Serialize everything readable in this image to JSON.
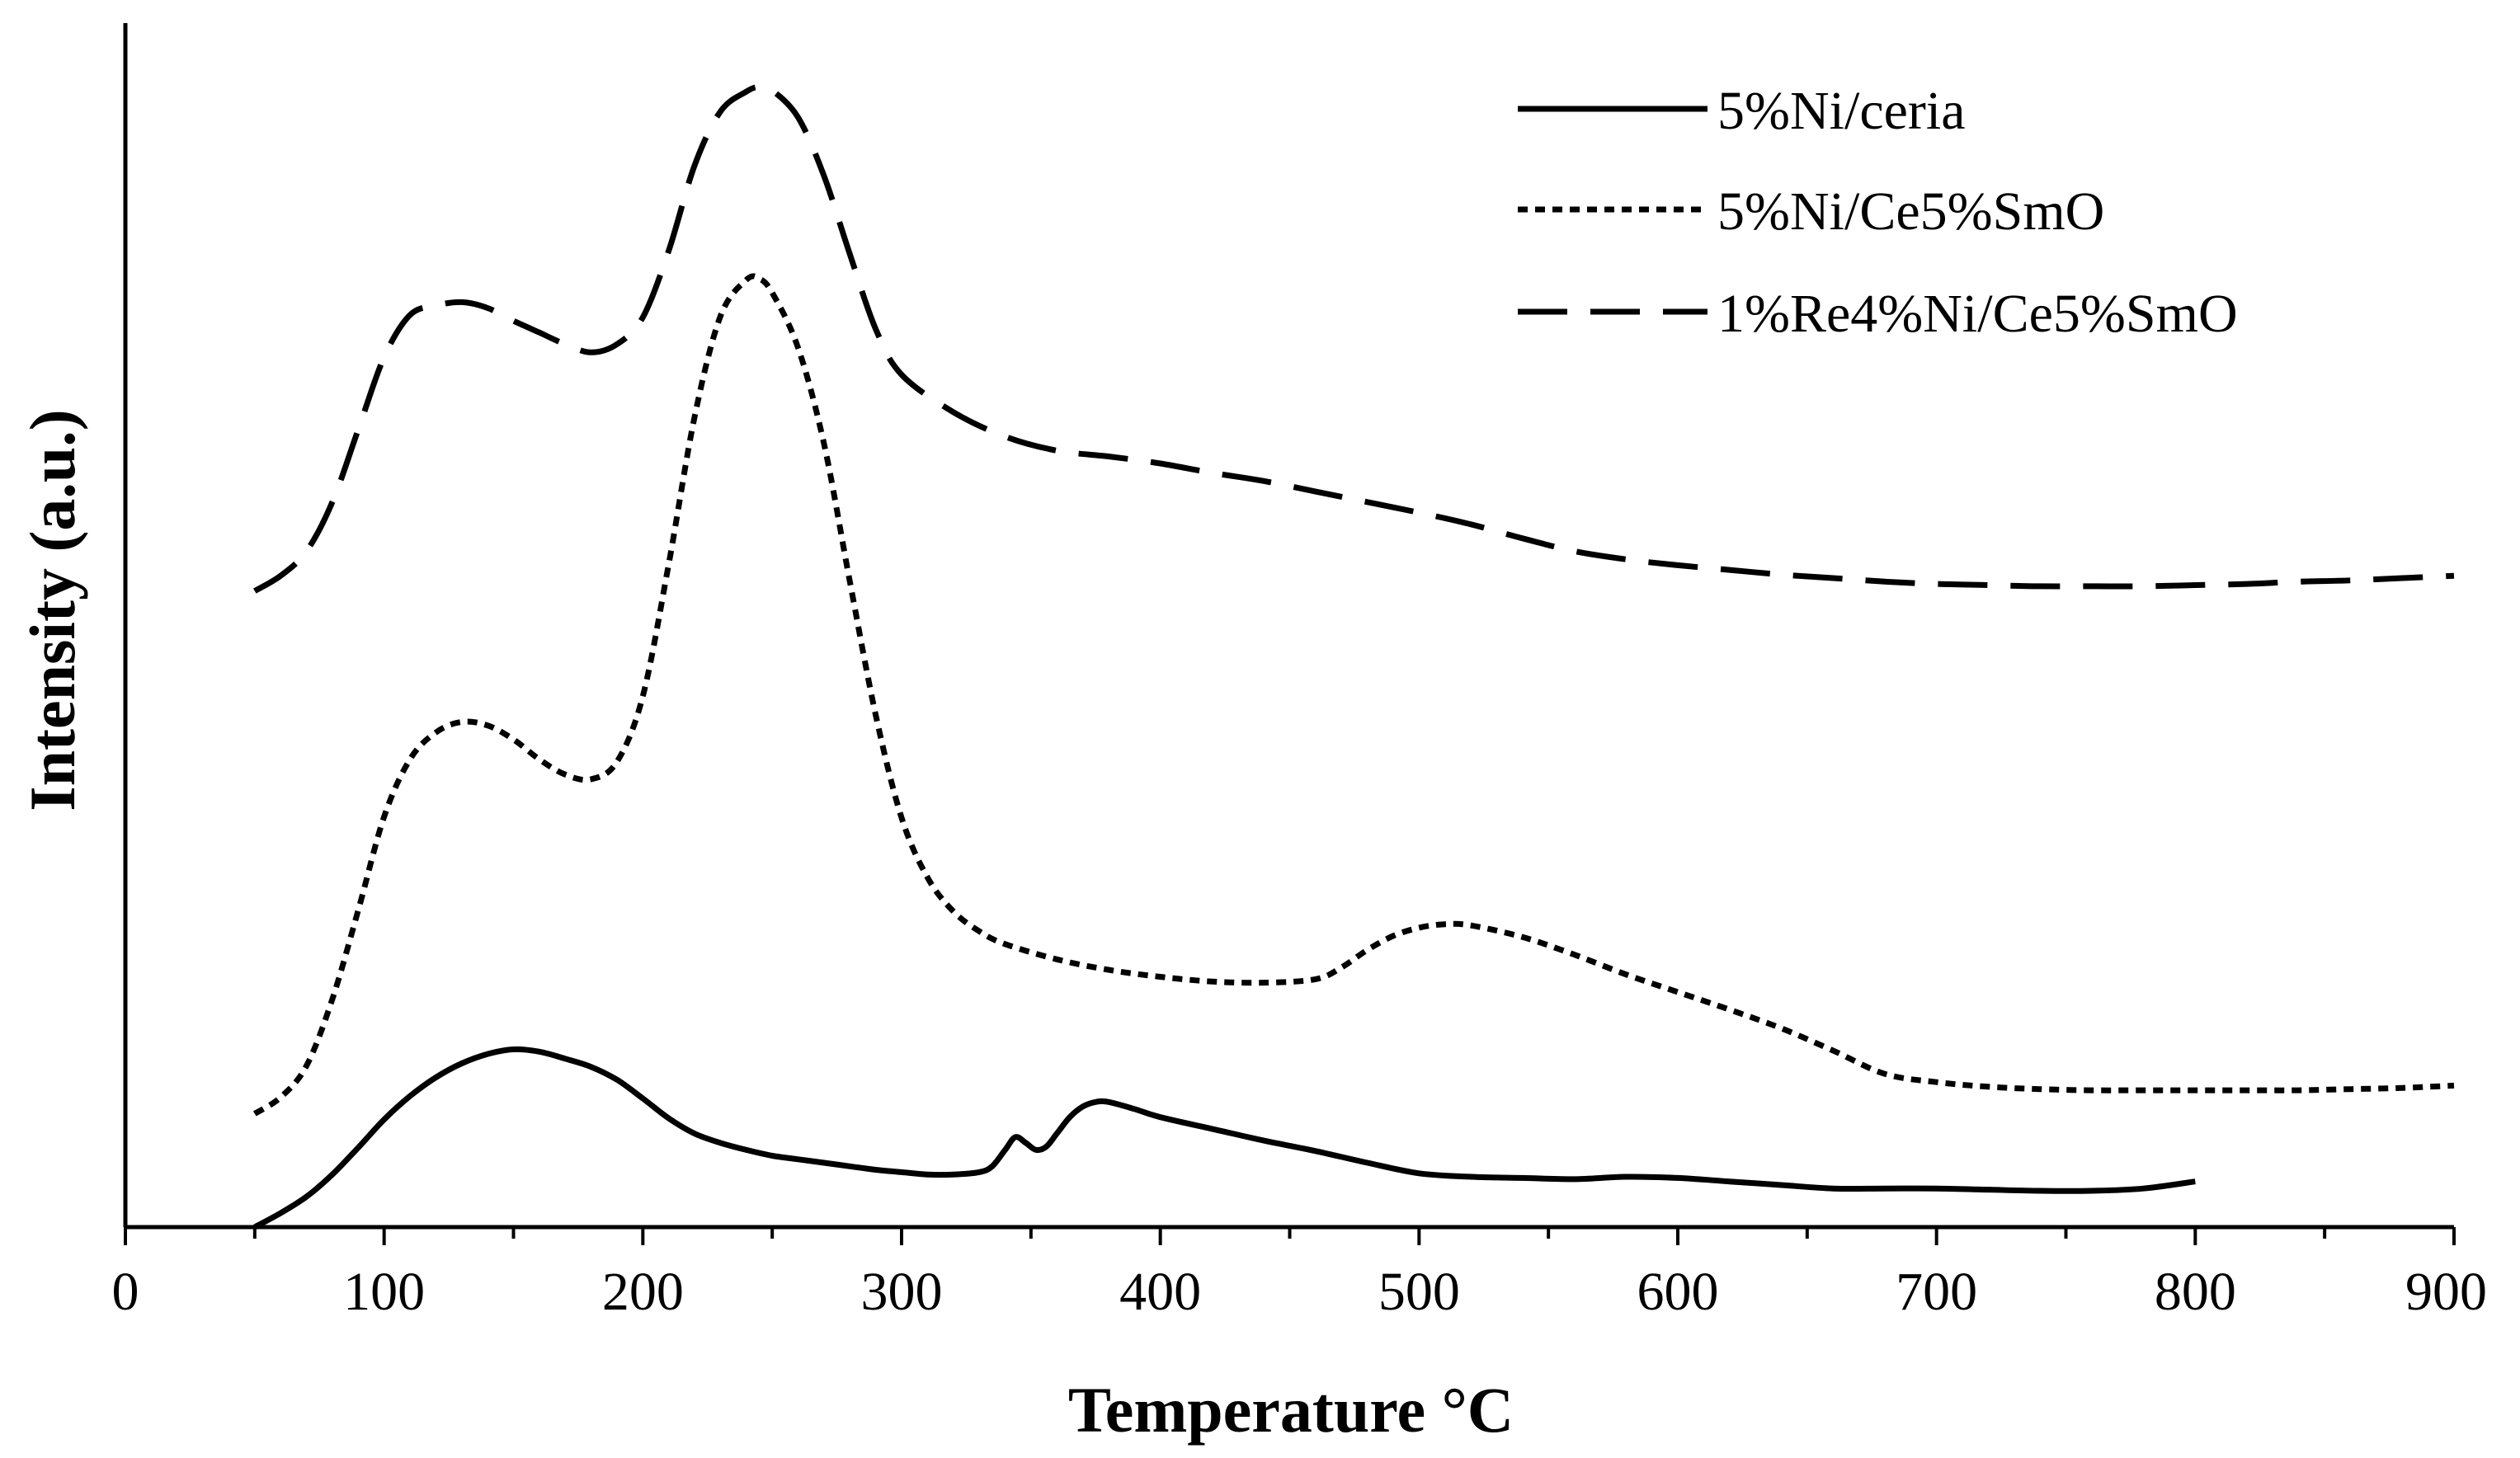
{
  "chart_data": {
    "type": "line",
    "title": "",
    "xlabel": "Temperature °C",
    "ylabel": "Intensity (a.u.)",
    "xlim": [
      0,
      900
    ],
    "ylim": [
      0,
      1
    ],
    "x_ticks": [
      0,
      100,
      200,
      300,
      400,
      500,
      600,
      700,
      800,
      900
    ],
    "x_tick_labels": [
      "0",
      "100",
      "200",
      "300",
      "400",
      "500",
      "600",
      "700",
      "800",
      "900"
    ],
    "grid": false,
    "legend_position": "top-right",
    "series": [
      {
        "name": "5%Ni/ceria",
        "style": "solid",
        "x": [
          50,
          60,
          70,
          80,
          90,
          100,
          110,
          120,
          130,
          140,
          150,
          160,
          170,
          180,
          190,
          200,
          210,
          220,
          230,
          240,
          250,
          260,
          270,
          280,
          290,
          300,
          310,
          320,
          330,
          335,
          340,
          344,
          348,
          352,
          356,
          360,
          365,
          370,
          375,
          380,
          390,
          400,
          420,
          440,
          460,
          480,
          500,
          520,
          540,
          560,
          580,
          600,
          620,
          640,
          660,
          680,
          700,
          720,
          740,
          760,
          780,
          800
        ],
        "y": [
          0.0,
          0.012,
          0.026,
          0.045,
          0.068,
          0.092,
          0.112,
          0.128,
          0.14,
          0.148,
          0.152,
          0.15,
          0.144,
          0.137,
          0.126,
          0.11,
          0.093,
          0.08,
          0.072,
          0.066,
          0.061,
          0.058,
          0.055,
          0.052,
          0.049,
          0.047,
          0.045,
          0.045,
          0.047,
          0.052,
          0.066,
          0.077,
          0.072,
          0.066,
          0.069,
          0.08,
          0.094,
          0.103,
          0.107,
          0.107,
          0.101,
          0.094,
          0.084,
          0.074,
          0.065,
          0.055,
          0.046,
          0.043,
          0.042,
          0.041,
          0.043,
          0.042,
          0.039,
          0.036,
          0.033,
          0.033,
          0.033,
          0.032,
          0.031,
          0.031,
          0.033,
          0.039
        ]
      },
      {
        "name": "5%Ni/Ce5%SmO",
        "style": "dotted",
        "x": [
          50,
          60,
          70,
          80,
          90,
          100,
          110,
          120,
          130,
          140,
          150,
          160,
          170,
          180,
          190,
          200,
          210,
          220,
          230,
          240,
          245,
          250,
          260,
          270,
          280,
          290,
          300,
          310,
          320,
          330,
          340,
          360,
          380,
          400,
          420,
          440,
          460,
          470,
          480,
          490,
          500,
          510,
          520,
          540,
          560,
          580,
          600,
          620,
          640,
          660,
          680,
          700,
          720,
          740,
          760,
          780,
          800,
          820,
          840,
          860,
          880,
          900
        ],
        "y": [
          0.097,
          0.111,
          0.138,
          0.195,
          0.271,
          0.351,
          0.4,
          0.423,
          0.432,
          0.429,
          0.417,
          0.4,
          0.387,
          0.383,
          0.398,
          0.454,
          0.567,
          0.693,
          0.779,
          0.81,
          0.811,
          0.799,
          0.752,
          0.67,
          0.552,
          0.438,
          0.35,
          0.299,
          0.27,
          0.253,
          0.242,
          0.229,
          0.22,
          0.214,
          0.21,
          0.209,
          0.212,
          0.222,
          0.237,
          0.249,
          0.256,
          0.259,
          0.258,
          0.248,
          0.233,
          0.216,
          0.201,
          0.186,
          0.17,
          0.151,
          0.131,
          0.124,
          0.12,
          0.118,
          0.117,
          0.117,
          0.117,
          0.117,
          0.117,
          0.118,
          0.119,
          0.121
        ]
      },
      {
        "name": "1%Re4%Ni/Ce5%SmO",
        "style": "dashed",
        "x": [
          50,
          60,
          70,
          80,
          90,
          100,
          110,
          120,
          130,
          140,
          150,
          160,
          170,
          180,
          190,
          200,
          210,
          220,
          230,
          240,
          245,
          250,
          260,
          270,
          280,
          290,
          300,
          320,
          340,
          360,
          380,
          400,
          420,
          440,
          460,
          480,
          500,
          520,
          540,
          560,
          580,
          600,
          620,
          640,
          660,
          680,
          700,
          720,
          740,
          760,
          780,
          800,
          820,
          840,
          860,
          880,
          900
        ],
        "y": [
          0.544,
          0.557,
          0.578,
          0.62,
          0.682,
          0.744,
          0.78,
          0.788,
          0.791,
          0.786,
          0.775,
          0.765,
          0.755,
          0.748,
          0.755,
          0.778,
          0.835,
          0.908,
          0.954,
          0.971,
          0.975,
          0.972,
          0.949,
          0.899,
          0.832,
          0.768,
          0.729,
          0.697,
          0.676,
          0.664,
          0.659,
          0.653,
          0.645,
          0.638,
          0.629,
          0.62,
          0.611,
          0.601,
          0.589,
          0.578,
          0.571,
          0.566,
          0.562,
          0.558,
          0.555,
          0.552,
          0.55,
          0.549,
          0.548,
          0.548,
          0.548,
          0.549,
          0.55,
          0.552,
          0.553,
          0.555,
          0.557
        ]
      }
    ]
  }
}
